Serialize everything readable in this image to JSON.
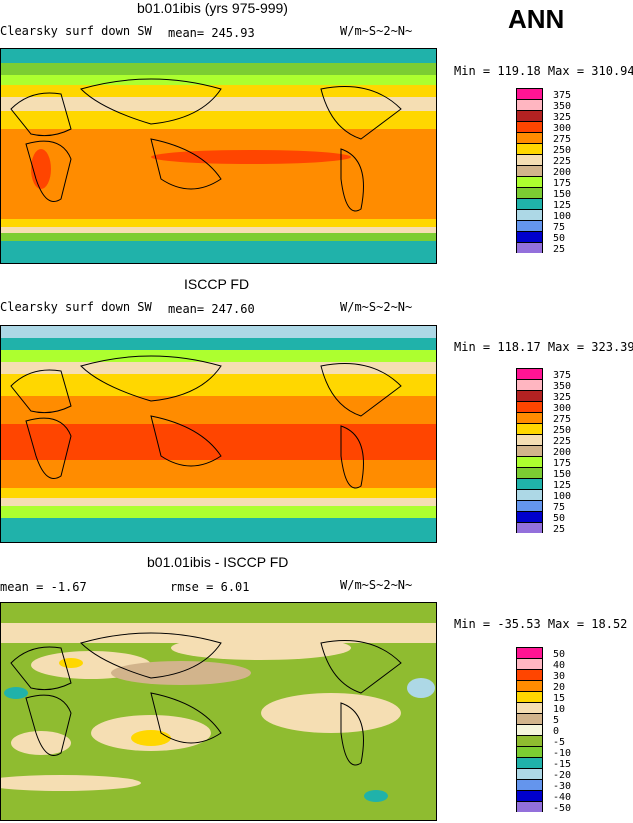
{
  "panels": [
    {
      "title": "b01.01ibis (yrs 975-999)",
      "left_label": "Clearsky surf down SW",
      "stat_label": "mean=",
      "stat_value": "245.93",
      "units": "W/m~S~2~N~",
      "minmax": "Min = 119.18 Max = 310.94",
      "legend": [
        "375",
        "350",
        "325",
        "300",
        "275",
        "250",
        "225",
        "200",
        "175",
        "150",
        "125",
        "100",
        "75",
        "50",
        "25"
      ],
      "legend_colors": [
        "#ff1493",
        "#ffb6c1",
        "#b22222",
        "#ff4500",
        "#ff8c00",
        "#ffd700",
        "#f5deb3",
        "#d2b48c",
        "#adff2f",
        "#7ccd32",
        "#20b2aa",
        "#add8e6",
        "#6495ed",
        "#0000cd",
        "#9370db"
      ]
    },
    {
      "title": "ISCCP FD",
      "left_label": "Clearsky surf down SW",
      "stat_label": "mean=",
      "stat_value": "247.60",
      "units": "W/m~S~2~N~",
      "minmax": "Min = 118.17 Max = 323.39",
      "legend": [
        "375",
        "350",
        "325",
        "300",
        "275",
        "250",
        "225",
        "200",
        "175",
        "150",
        "125",
        "100",
        "75",
        "50",
        "25"
      ],
      "legend_colors": [
        "#ff1493",
        "#ffb6c1",
        "#b22222",
        "#ff4500",
        "#ff8c00",
        "#ffd700",
        "#f5deb3",
        "#d2b48c",
        "#adff2f",
        "#7ccd32",
        "#20b2aa",
        "#add8e6",
        "#6495ed",
        "#0000cd",
        "#9370db"
      ]
    },
    {
      "title": "b01.01ibis - ISCCP FD",
      "left_label": "mean =",
      "left_value": "-1.67",
      "stat_label": "rmse =",
      "stat_value": "6.01",
      "units": "W/m~S~2~N~",
      "minmax": "Min = -35.53 Max =  18.52",
      "legend": [
        "50",
        "40",
        "30",
        "20",
        "15",
        "10",
        "5",
        "0",
        "-5",
        "-10",
        "-15",
        "-20",
        "-30",
        "-40",
        "-50"
      ],
      "legend_colors": [
        "#ff1493",
        "#ffb6c1",
        "#ff4500",
        "#ff8c00",
        "#ffd700",
        "#f5deb3",
        "#d2b48c",
        "#f5f5dc",
        "#8fbc30",
        "#7ccd32",
        "#20b2aa",
        "#add8e6",
        "#6495ed",
        "#0000cd",
        "#9370db"
      ]
    }
  ],
  "season": "ANN"
}
